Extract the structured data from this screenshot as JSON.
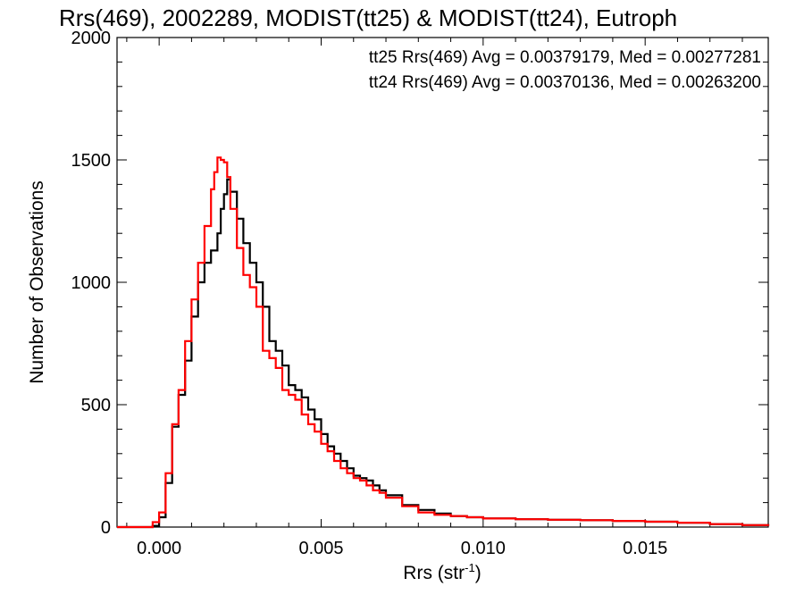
{
  "chart_data": {
    "type": "line",
    "title": "Rrs(469), 2002289, MODIST(tt25) & MODIST(tt24), Eutroph",
    "xlabel": "Rrs (str",
    "xlabel_sup": "-1",
    "xlabel_tail": ")",
    "ylabel": "Number of Observations",
    "xlim": [
      -0.0013,
      0.0188
    ],
    "ylim": [
      0,
      2000
    ],
    "x_ticks": [
      {
        "value": 0.0,
        "label": "0.000"
      },
      {
        "value": 0.005,
        "label": "0.005"
      },
      {
        "value": 0.01,
        "label": "0.010"
      },
      {
        "value": 0.015,
        "label": "0.015"
      }
    ],
    "y_ticks": [
      {
        "value": 0,
        "label": "0"
      },
      {
        "value": 500,
        "label": "500"
      },
      {
        "value": 1000,
        "label": "1000"
      },
      {
        "value": 1500,
        "label": "1500"
      },
      {
        "value": 2000,
        "label": "2000"
      }
    ],
    "grid": false,
    "legend_position": "top-right",
    "step_style": "histogram",
    "series": [
      {
        "name": "tt25",
        "color": "#000000",
        "legend_text": "tt25 Rrs(469) Avg = 0.00379179, Med = 0.00277281",
        "x": [
          -0.0013,
          -0.0005,
          -0.0002,
          0.0,
          0.0002,
          0.0004,
          0.0006,
          0.0008,
          0.001,
          0.0012,
          0.0014,
          0.0016,
          0.0018,
          0.0019,
          0.002,
          0.0021,
          0.0022,
          0.0024,
          0.0026,
          0.0028,
          0.003,
          0.0032,
          0.0034,
          0.0036,
          0.0038,
          0.004,
          0.0042,
          0.0044,
          0.0046,
          0.0048,
          0.005,
          0.0052,
          0.0054,
          0.0056,
          0.0058,
          0.006,
          0.0062,
          0.0064,
          0.0066,
          0.0068,
          0.007,
          0.0075,
          0.008,
          0.0085,
          0.009,
          0.0095,
          0.01,
          0.011,
          0.012,
          0.013,
          0.014,
          0.015,
          0.016,
          0.017,
          0.018,
          0.0188
        ],
        "y": [
          0,
          0,
          5,
          40,
          180,
          410,
          540,
          680,
          860,
          1000,
          1080,
          1130,
          1200,
          1300,
          1360,
          1420,
          1370,
          1260,
          1160,
          1080,
          1000,
          900,
          760,
          720,
          660,
          580,
          560,
          530,
          480,
          440,
          380,
          330,
          300,
          270,
          240,
          210,
          200,
          190,
          170,
          150,
          130,
          90,
          70,
          55,
          45,
          40,
          35,
          32,
          30,
          28,
          25,
          22,
          18,
          12,
          8,
          5
        ]
      },
      {
        "name": "tt24",
        "color": "#ff0000",
        "legend_text": "tt24 Rrs(469) Avg = 0.00370136, Med = 0.00263200",
        "x": [
          -0.0013,
          -0.0005,
          -0.0002,
          0.0,
          0.0002,
          0.0004,
          0.0006,
          0.0008,
          0.001,
          0.0012,
          0.0014,
          0.0016,
          0.0017,
          0.0018,
          0.0019,
          0.002,
          0.0021,
          0.0022,
          0.0024,
          0.0026,
          0.0028,
          0.003,
          0.0032,
          0.0034,
          0.0036,
          0.0038,
          0.004,
          0.0042,
          0.0044,
          0.0046,
          0.0048,
          0.005,
          0.0052,
          0.0054,
          0.0056,
          0.0058,
          0.006,
          0.0062,
          0.0064,
          0.0066,
          0.0068,
          0.007,
          0.0075,
          0.008,
          0.0085,
          0.009,
          0.0095,
          0.01,
          0.011,
          0.012,
          0.013,
          0.014,
          0.015,
          0.016,
          0.017,
          0.018,
          0.0188
        ],
        "y": [
          0,
          0,
          20,
          60,
          220,
          420,
          560,
          760,
          930,
          1080,
          1230,
          1380,
          1450,
          1510,
          1500,
          1490,
          1430,
          1300,
          1140,
          1030,
          980,
          900,
          720,
          690,
          650,
          560,
          540,
          520,
          460,
          420,
          390,
          340,
          310,
          270,
          240,
          220,
          200,
          190,
          170,
          150,
          140,
          120,
          85,
          60,
          50,
          45,
          40,
          35,
          32,
          30,
          28,
          25,
          22,
          18,
          12,
          8,
          5
        ]
      }
    ]
  }
}
